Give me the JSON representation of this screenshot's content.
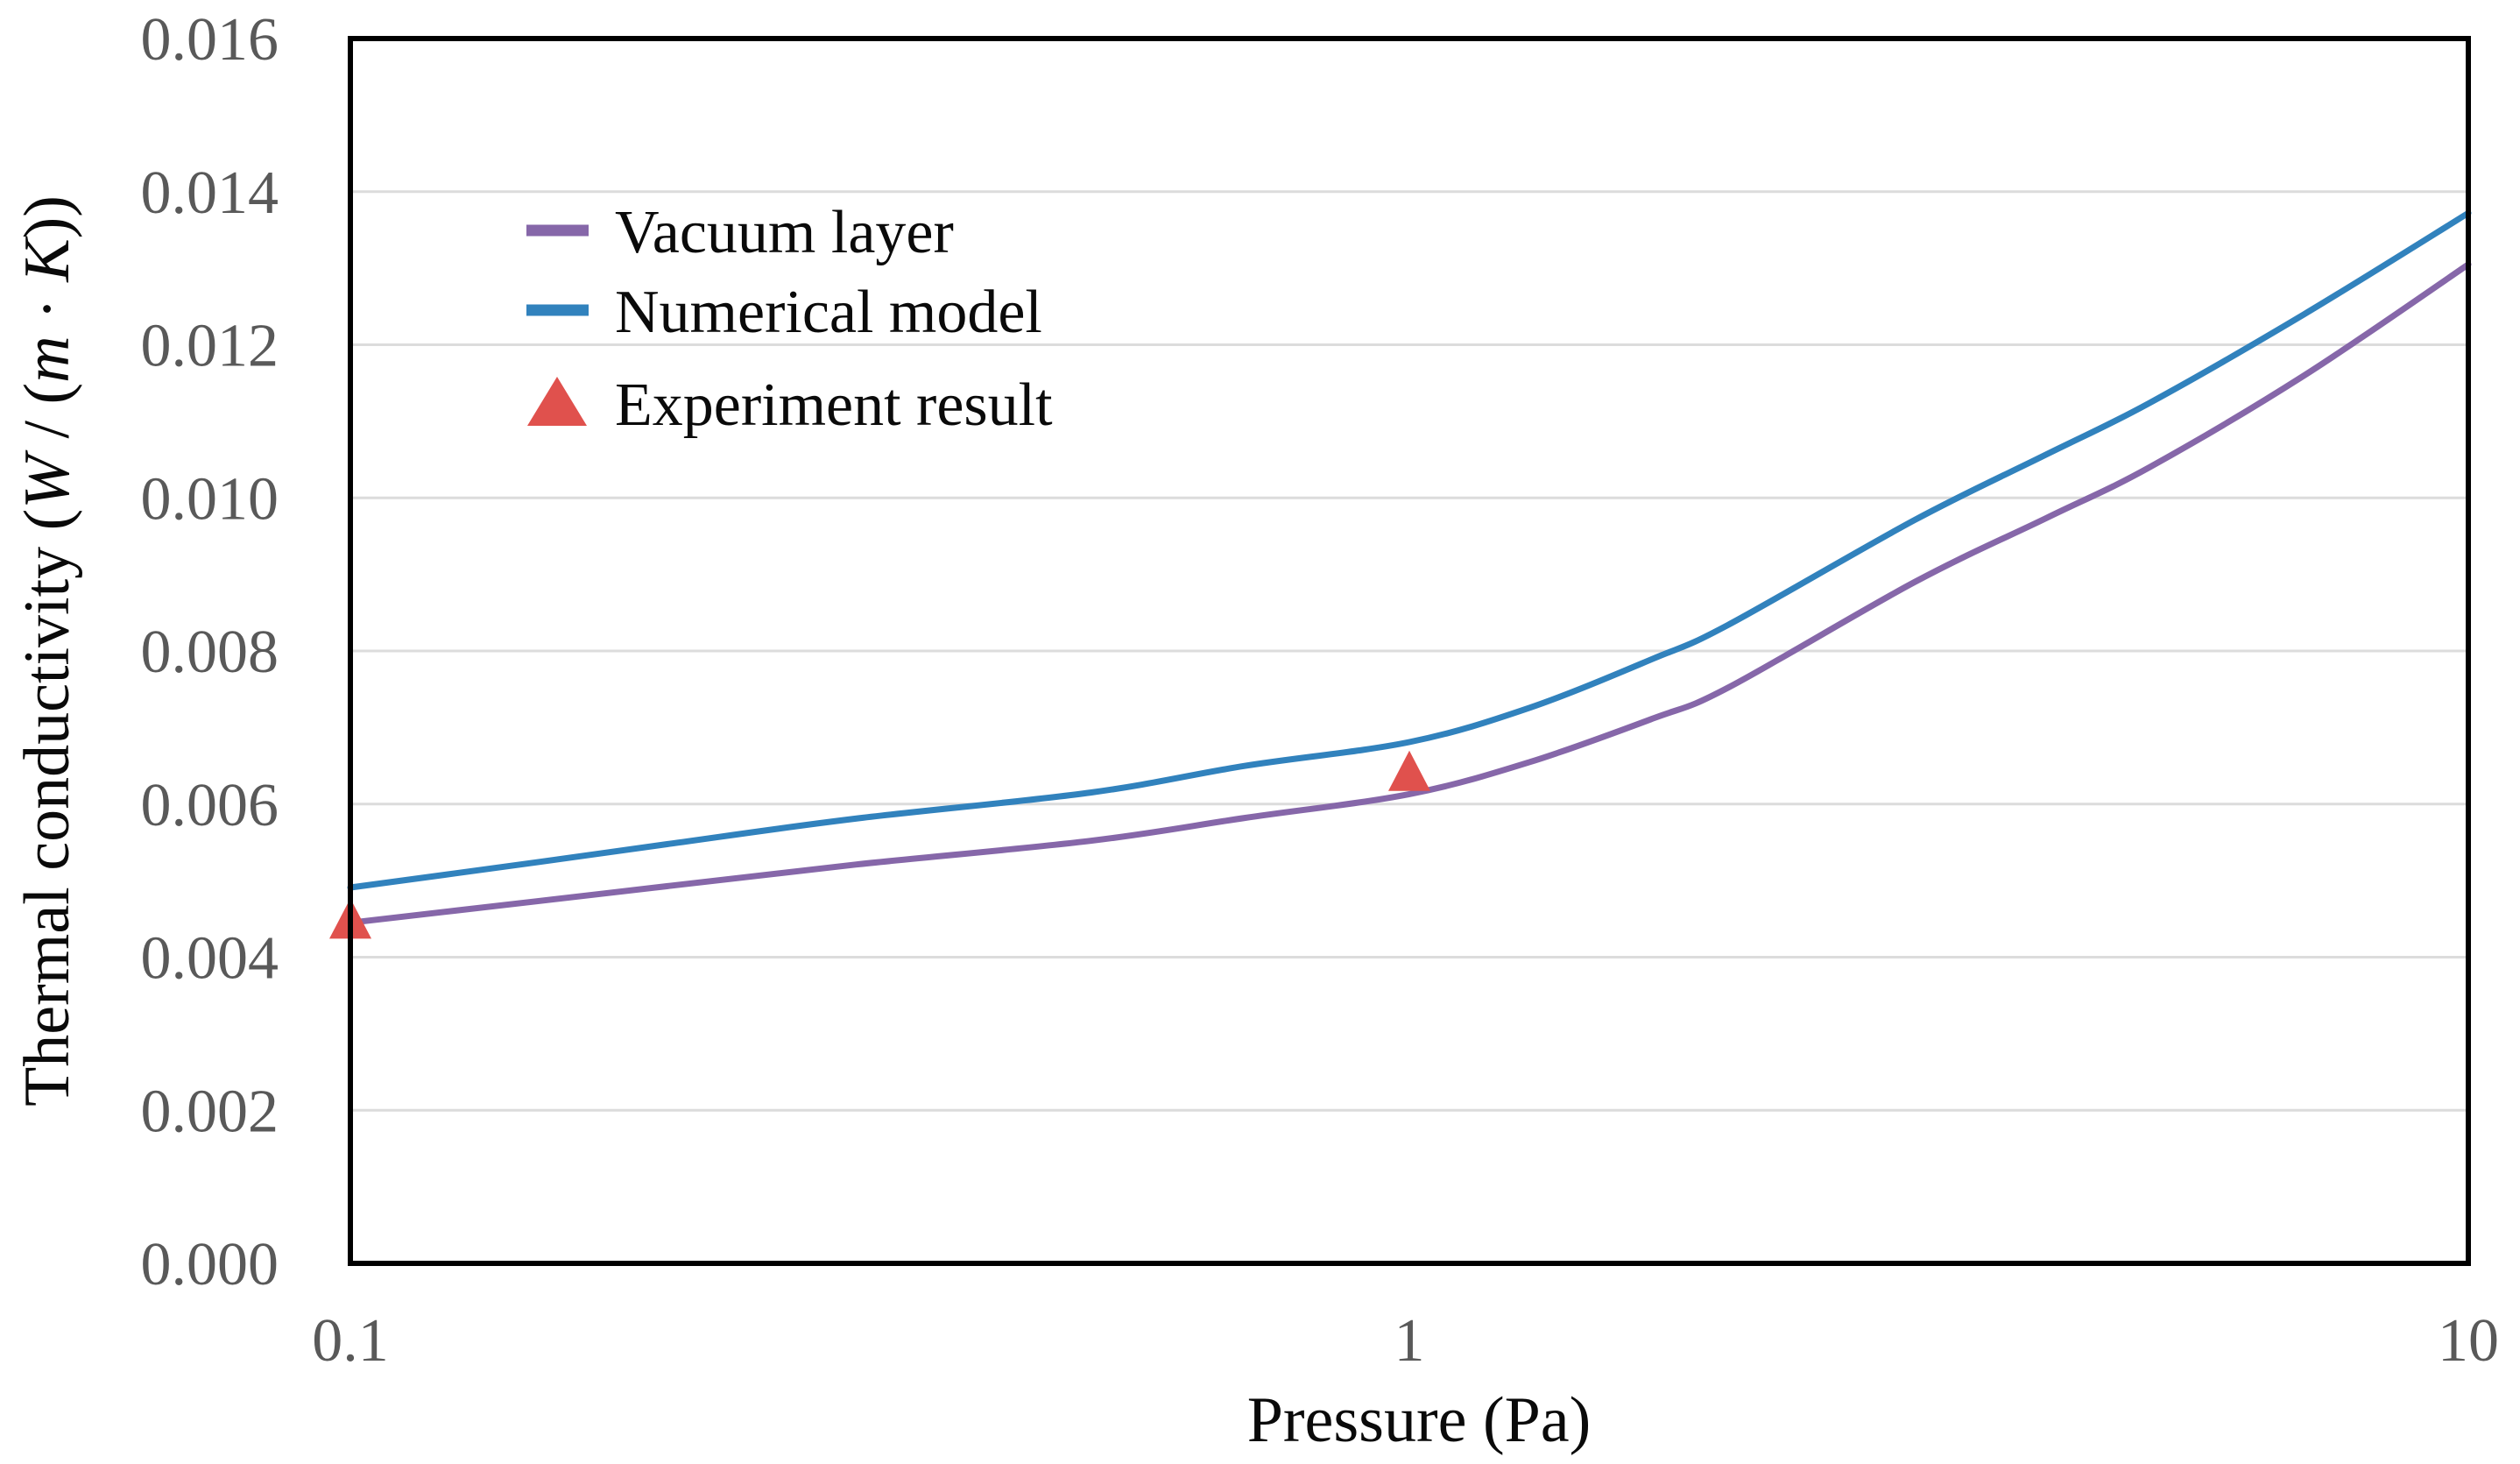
{
  "figure": {
    "background": "#ffffff",
    "border_color": "#000000",
    "gridline_color": "#dcdcdc",
    "tick_label_color": "#595959"
  },
  "x_axis": {
    "title": "Pressure (Pa)",
    "scale": "log",
    "range": [
      0.1,
      10
    ],
    "ticks": [
      {
        "value": 0.1,
        "label": "0.1"
      },
      {
        "value": 1,
        "label": "1"
      },
      {
        "value": 10,
        "label": "10"
      }
    ]
  },
  "y_axis": {
    "title_parts": [
      {
        "t": "Thermal conductivity (",
        "italic": false
      },
      {
        "t": "W",
        "italic": true
      },
      {
        "t": " / (",
        "italic": false
      },
      {
        "t": "m",
        "italic": true
      },
      {
        "t": " · ",
        "italic": false
      },
      {
        "t": "K",
        "italic": true
      },
      {
        "t": "))",
        "italic": false
      }
    ],
    "range": [
      0,
      0.016
    ],
    "tick_step": 0.002,
    "ticks": [
      {
        "value": 0.0,
        "label": "0.000"
      },
      {
        "value": 0.002,
        "label": "0.002"
      },
      {
        "value": 0.004,
        "label": "0.004"
      },
      {
        "value": 0.006,
        "label": "0.006"
      },
      {
        "value": 0.008,
        "label": "0.008"
      },
      {
        "value": 0.01,
        "label": "0.010"
      },
      {
        "value": 0.012,
        "label": "0.012"
      },
      {
        "value": 0.014,
        "label": "0.014"
      },
      {
        "value": 0.016,
        "label": "0.016"
      }
    ]
  },
  "legend": {
    "position": "top-left-inside",
    "items": [
      {
        "label": "Vacuum layer",
        "marker": "line",
        "color": "#8667A9"
      },
      {
        "label": "Numerical model",
        "marker": "line",
        "color": "#3182BD"
      },
      {
        "label": "Experiment result",
        "marker": "triangle",
        "color": "#E0514D"
      }
    ]
  },
  "chart_data": {
    "type": "line",
    "title": "",
    "xlabel": "Pressure (Pa)",
    "ylabel": "Thermal conductivity (W / (m · K))",
    "x_scale": "log",
    "xlim": [
      0.1,
      10
    ],
    "ylim": [
      0,
      0.016
    ],
    "grid": "horizontal-only",
    "legend_position": "top-left-inside",
    "series": [
      {
        "name": "Vacuum layer",
        "type": "line",
        "color": "#8667A9",
        "points": [
          [
            0.1,
            0.00445
          ],
          [
            0.15,
            0.00473
          ],
          [
            0.2,
            0.00493
          ],
          [
            0.3,
            0.00521
          ],
          [
            0.5,
            0.00552
          ],
          [
            0.7,
            0.00582
          ],
          [
            1,
            0.00613
          ],
          [
            1.3,
            0.00655
          ],
          [
            1.7,
            0.00712
          ],
          [
            2,
            0.00752
          ],
          [
            3,
            0.0089
          ],
          [
            4,
            0.00974
          ],
          [
            5,
            0.0104
          ],
          [
            7,
            0.0116
          ],
          [
            10,
            0.01305
          ]
        ]
      },
      {
        "name": "Numerical model",
        "type": "line",
        "color": "#3182BD",
        "points": [
          [
            0.1,
            0.00491
          ],
          [
            0.15,
            0.00524
          ],
          [
            0.2,
            0.00548
          ],
          [
            0.3,
            0.00581
          ],
          [
            0.5,
            0.00615
          ],
          [
            0.7,
            0.0065
          ],
          [
            1,
            0.00681
          ],
          [
            1.3,
            0.00726
          ],
          [
            1.7,
            0.0079
          ],
          [
            2,
            0.00834
          ],
          [
            3,
            0.00971
          ],
          [
            4,
            0.01057
          ],
          [
            5,
            0.01124
          ],
          [
            7,
            0.0124
          ],
          [
            10,
            0.01372
          ]
        ]
      },
      {
        "name": "Experiment result",
        "type": "scatter",
        "marker": "triangle",
        "color": "#E0514D",
        "points": [
          [
            0.1,
            0.00447
          ],
          [
            1,
            0.0064
          ]
        ]
      }
    ]
  }
}
